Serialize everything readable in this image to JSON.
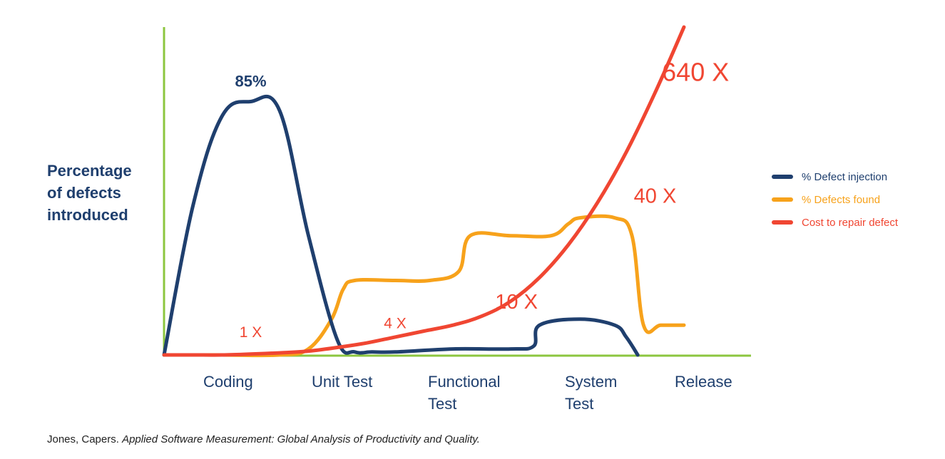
{
  "chart_data": {
    "type": "line",
    "ylabel": [
      "Percentage",
      "of defects",
      "introduced"
    ],
    "xlabel": "",
    "categories": [
      [
        "Coding"
      ],
      [
        "Unit Test"
      ],
      [
        "Functional",
        "Test"
      ],
      [
        "System",
        "Test"
      ],
      [
        "Release"
      ]
    ],
    "ylim": [
      0,
      100
    ],
    "grid": false,
    "legend_position": "right",
    "series": [
      {
        "name": "% Defect injection",
        "color": "#1f3f6e",
        "x": [
          0,
          0.25,
          0.5,
          0.75,
          1.0,
          1.25,
          1.5,
          1.65,
          1.8,
          2.0,
          2.5,
          3.0,
          3.2,
          3.25,
          3.6,
          3.9,
          4.0,
          4.1
        ],
        "values": [
          0,
          50,
          80,
          85,
          82,
          40,
          5,
          1,
          1,
          1,
          2,
          2,
          3,
          10,
          12,
          10,
          6,
          0
        ]
      },
      {
        "name": "% Defects found",
        "color": "#f7a21b",
        "x": [
          0,
          0.5,
          1.0,
          1.25,
          1.45,
          1.55,
          1.65,
          2.0,
          2.3,
          2.55,
          2.65,
          3.0,
          3.35,
          3.5,
          3.6,
          3.9,
          4.05,
          4.15,
          4.3,
          4.5
        ],
        "values": [
          0,
          0,
          0,
          2,
          12,
          22,
          25,
          25,
          25,
          28,
          40,
          40,
          40,
          44,
          46,
          46,
          40,
          10,
          10,
          10
        ]
      },
      {
        "name": "Cost to repair defect",
        "color": "#f04632",
        "x": [
          0,
          0.25,
          0.5,
          0.75,
          1.0,
          1.25,
          1.5,
          1.75,
          2.0,
          2.25,
          2.5,
          2.75,
          3.0,
          3.25,
          3.5,
          3.75,
          4.0,
          4.25,
          4.5
        ],
        "values": [
          0,
          0,
          0,
          0.3,
          0.7,
          1.3,
          2.5,
          4,
          6,
          8,
          10,
          13,
          18,
          26,
          37,
          51,
          68,
          88,
          110
        ]
      }
    ],
    "annotations": [
      {
        "text": "85%",
        "x": 0.75,
        "y": 90,
        "series": "% Defect injection",
        "color": "#1f3f6e",
        "size": 22
      },
      {
        "text": "1 X",
        "x": 0.75,
        "y": 6,
        "series": "Cost to repair defect",
        "color": "#f04632",
        "size": 21
      },
      {
        "text": "4 X",
        "x": 2.0,
        "y": 9,
        "series": "Cost to repair defect",
        "color": "#f04632",
        "size": 21
      },
      {
        "text": "10 X",
        "x": 3.05,
        "y": 15.5,
        "series": "Cost to repair defect",
        "color": "#f04632",
        "size": 29
      },
      {
        "text": "40 X",
        "x": 4.25,
        "y": 51,
        "series": "Cost to repair defect",
        "color": "#f04632",
        "size": 29
      },
      {
        "text": "640 X",
        "x": 4.6,
        "y": 92,
        "series": "Cost to repair defect",
        "color": "#f04632",
        "size": 36
      }
    ],
    "axis_color": "#8cc63f"
  },
  "source": {
    "author": "Jones, Capers.",
    "title": "Applied Software Measurement: Global Analysis of Productivity and Quality."
  }
}
